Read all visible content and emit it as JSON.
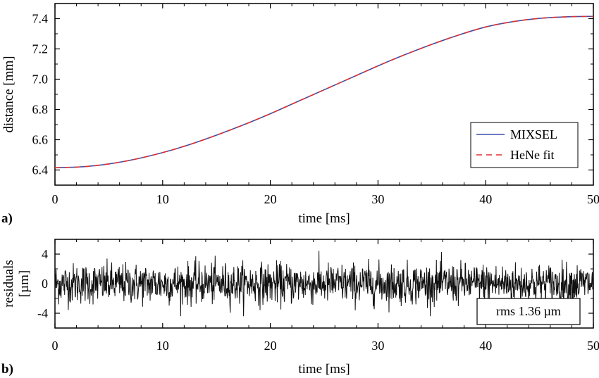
{
  "chart_data": [
    {
      "panel": "a)",
      "type": "line",
      "xlabel": "time [ms]",
      "ylabel": "distance [mm]",
      "xlim": [
        0,
        50
      ],
      "ylim": [
        6.3,
        7.5
      ],
      "xticks": [
        "0",
        "10",
        "20",
        "30",
        "40",
        "50"
      ],
      "yticks": [
        "6.4",
        "6.6",
        "6.8",
        "7.0",
        "7.2",
        "7.4"
      ],
      "grid": false,
      "legend_position": "bottom-right",
      "series": [
        {
          "name": "MIXSEL",
          "style": "solid",
          "color": "#3b4fa8",
          "x": [
            0,
            2.5,
            5,
            7.5,
            10,
            12.5,
            15,
            17.5,
            20,
            22.5,
            25,
            27.5,
            30,
            32.5,
            35,
            37.5,
            40,
            42.5,
            45,
            47.5,
            50
          ],
          "y": [
            6.415,
            6.421,
            6.44,
            6.472,
            6.515,
            6.568,
            6.63,
            6.698,
            6.772,
            6.851,
            6.93,
            7.009,
            7.088,
            7.162,
            7.23,
            7.292,
            7.345,
            7.38,
            7.402,
            7.412,
            7.415
          ]
        },
        {
          "name": "HeNe fit",
          "style": "dashed",
          "color": "#e03030",
          "x": [
            0,
            2.5,
            5,
            7.5,
            10,
            12.5,
            15,
            17.5,
            20,
            22.5,
            25,
            27.5,
            30,
            32.5,
            35,
            37.5,
            40,
            42.5,
            45,
            47.5,
            50
          ],
          "y": [
            6.415,
            6.421,
            6.44,
            6.472,
            6.515,
            6.568,
            6.63,
            6.698,
            6.772,
            6.851,
            6.93,
            7.009,
            7.088,
            7.162,
            7.23,
            7.292,
            7.345,
            7.38,
            7.402,
            7.412,
            7.415
          ]
        }
      ]
    },
    {
      "panel": "b)",
      "type": "line",
      "xlabel": "time [ms]",
      "ylabel": "residuals",
      "ylabel_unit": "[µm]",
      "xlim": [
        0,
        50
      ],
      "ylim": [
        -6,
        6
      ],
      "xticks": [
        "0",
        "10",
        "20",
        "30",
        "40",
        "50"
      ],
      "yticks": [
        "4",
        "0",
        "-4"
      ],
      "ytick_values": [
        4,
        0,
        -4
      ],
      "grid": false,
      "annotation": "rms 1.36 µm",
      "series": [
        {
          "color": "#111111",
          "rms": 1.36,
          "n_points": 1500,
          "peak_max": 5.1,
          "peak_min": -4.4
        }
      ]
    }
  ]
}
